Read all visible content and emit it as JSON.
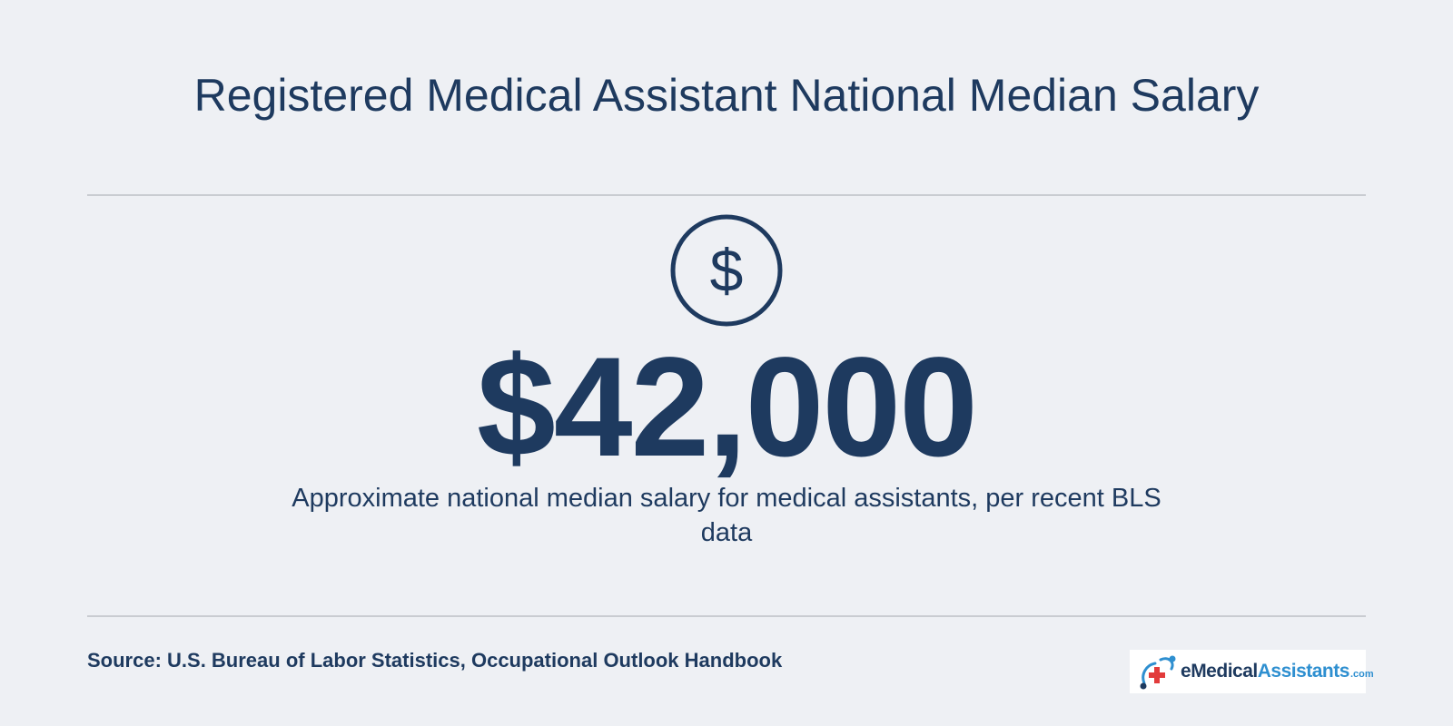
{
  "title": "Registered Medical Assistant National Median Salary",
  "icon": {
    "name": "dollar-circle-icon",
    "glyph": "$"
  },
  "stat": {
    "value": "$42,000",
    "description": "Approximate national median salary for medical assistants, per recent BLS data"
  },
  "footer": {
    "source": "Source: U.S. Bureau of Labor Statistics, Occupational Outlook Handbook",
    "logo": {
      "e": "e",
      "medical": "Medical",
      "assistants": "Assistants",
      "com": ".com"
    }
  },
  "colors": {
    "background": "#eef0f4",
    "primary": "#1e3a5f",
    "divider": "#c9ccd1",
    "brand_blue": "#2e8fd0",
    "brand_red": "#e23b3b"
  }
}
